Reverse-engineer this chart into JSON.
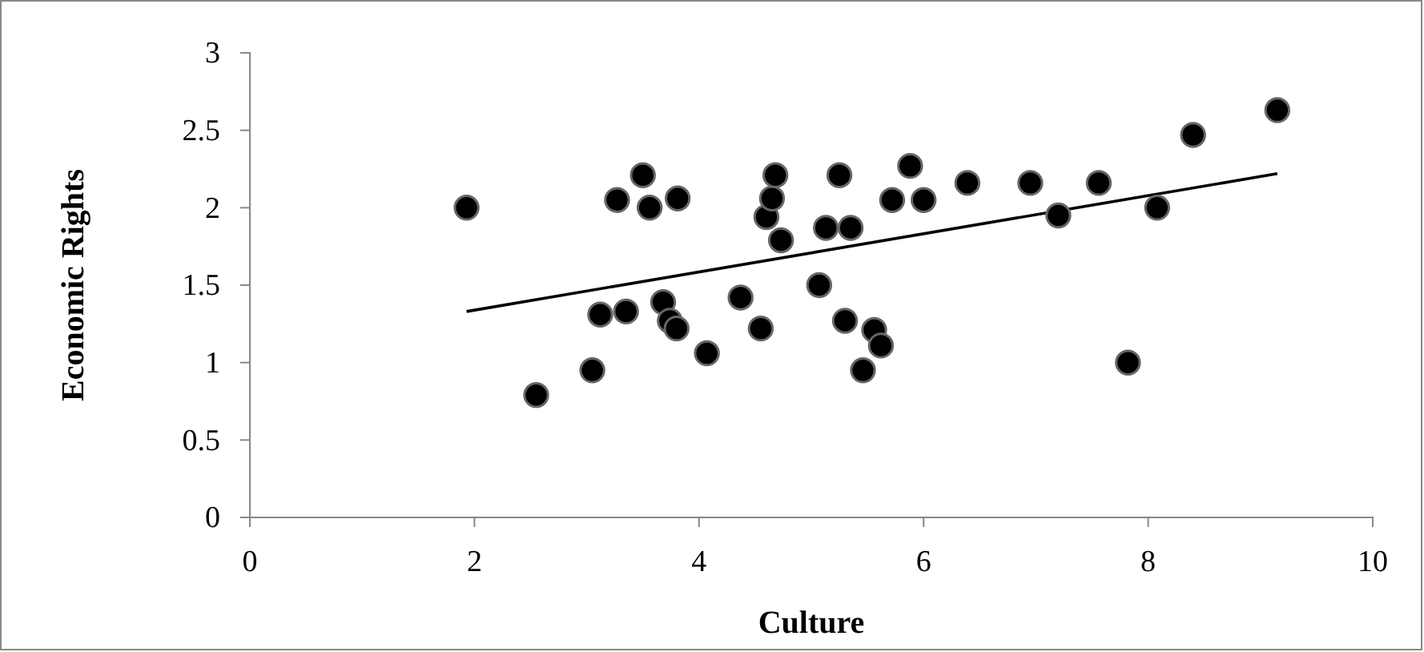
{
  "chart_data": {
    "type": "scatter",
    "xlabel": "Culture",
    "ylabel": "Economic Rights",
    "xlim": [
      0,
      10
    ],
    "xticks": [
      0,
      2,
      4,
      6,
      8,
      10
    ],
    "ylim": [
      0,
      3
    ],
    "yticks": [
      0,
      0.5,
      1,
      1.5,
      2,
      2.5,
      3
    ],
    "grid": false,
    "series": [
      {
        "marker": "circle",
        "color": "#000000",
        "x": [
          1.93,
          2.55,
          3.05,
          3.12,
          3.27,
          3.35,
          3.5,
          3.56,
          3.68,
          3.74,
          3.8,
          3.81,
          4.07,
          4.37,
          4.55,
          4.6,
          4.65,
          4.68,
          4.73,
          5.07,
          5.13,
          5.25,
          5.3,
          5.35,
          5.46,
          5.56,
          5.62,
          5.72,
          5.88,
          6.0,
          6.39,
          6.95,
          7.2,
          7.56,
          7.82,
          8.08,
          8.4,
          9.15
        ],
        "values": [
          2.0,
          0.79,
          0.95,
          1.31,
          2.05,
          1.33,
          2.21,
          2.0,
          1.39,
          1.27,
          1.22,
          2.06,
          1.06,
          1.42,
          1.22,
          1.94,
          2.06,
          2.21,
          1.79,
          1.5,
          1.87,
          2.21,
          1.27,
          1.87,
          0.95,
          1.21,
          1.11,
          2.05,
          2.27,
          2.05,
          2.16,
          2.16,
          1.95,
          2.16,
          1.0,
          2.0,
          2.47,
          2.63
        ]
      },
      {
        "type": "line",
        "color": "#000000",
        "x": [
          1.93,
          9.15
        ],
        "values": [
          1.33,
          2.22
        ]
      }
    ]
  }
}
